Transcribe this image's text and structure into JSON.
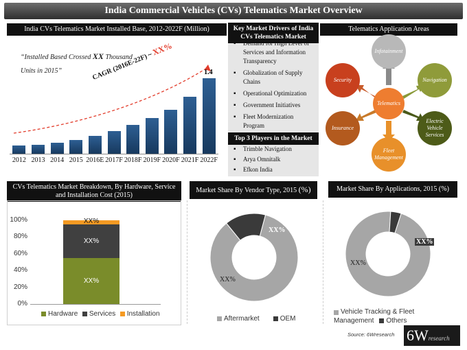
{
  "title": "India Commercial Vehicles (CVs) Telematics Market Overview",
  "installed_base": {
    "header": "India CVs Telematics Market Installed Base, 2012-2022F (Million)",
    "note_line1": "“Installed Based Crossed ",
    "note_bold": "XX",
    "note_line1_end": " Thousand",
    "note_line2": "Units in 2015”",
    "cagr_label": "CAGR (2016E-22F) ~ ",
    "cagr_value": "XX%",
    "last_value_label": "1.4"
  },
  "drivers": {
    "header": "Key Market Drivers of India CVs Telematics Market",
    "items": [
      "Demand for High Level of Services and Information Transparency",
      "Globalization of Supply Chains",
      "Operational Optimization",
      "Government Initiatives",
      "Fleet Modernization Program"
    ]
  },
  "players": {
    "header": "Top 3 Players in the Market",
    "items": [
      "Trimble Navigation",
      "Arya Omnitalk",
      "Efkon India"
    ]
  },
  "applications": {
    "header": "Telematics Application Areas",
    "center": "Telematics",
    "nodes": {
      "infotainment": "Infotainment",
      "navigation": "Navigation",
      "electric": "Electric Vehicle Services",
      "fleet": "Fleet Management",
      "insurance": "Insurance",
      "security": "Security"
    }
  },
  "breakdown": {
    "header": "CVs Telematics Market Breakdown, By Hardware, Service and Installation Cost (2015)",
    "legend": [
      "Hardware",
      "Services",
      "Installation"
    ],
    "segment_labels": [
      "XX%",
      "XX%",
      "XX%"
    ]
  },
  "vendor": {
    "header_main": "Market Share By Vendor Type, 2015 ",
    "header_unit": "(%)",
    "legend": [
      "Aftermarket",
      "OEM"
    ],
    "labels": [
      "XX%",
      "XX%"
    ]
  },
  "apps_share": {
    "header": "Market Share By Applications, 2015 (%)",
    "legend": [
      "Vehicle Tracking & Fleet Management",
      "Others"
    ],
    "labels": [
      "XX%",
      "XX%"
    ]
  },
  "source": "Source: 6Wresearch",
  "logo": {
    "big": "6W",
    "small": "research"
  },
  "colors": {
    "bar": "#1f4a7a",
    "hardware": "#7a8c2a",
    "services": "#404040",
    "installation": "#f59a23",
    "donut_gray": "#a6a6a6",
    "donut_dark": "#3a3a3a"
  },
  "chart_data": [
    {
      "type": "bar",
      "title": "India CVs Telematics Market Installed Base, 2012-2022F (Million)",
      "categories": [
        "2012",
        "2013",
        "2014",
        "2015",
        "2016E",
        "2017F",
        "2018F",
        "2019F",
        "2020F",
        "2021F",
        "2022F"
      ],
      "values": [
        0.15,
        0.17,
        0.21,
        0.26,
        0.33,
        0.42,
        0.53,
        0.66,
        0.81,
        1.06,
        1.4
      ]
    },
    {
      "type": "bar",
      "title": "CVs Telematics Market Breakdown, By Hardware, Service and Installation Cost (2015)",
      "categories": [
        "2015"
      ],
      "series": [
        {
          "name": "Hardware",
          "values": [
            55
          ]
        },
        {
          "name": "Services",
          "values": [
            40
          ]
        },
        {
          "name": "Installation",
          "values": [
            5
          ]
        }
      ],
      "ylim": [
        0,
        100
      ],
      "yticks": [
        "0%",
        "20%",
        "40%",
        "60%",
        "80%",
        "100%"
      ]
    },
    {
      "type": "pie",
      "title": "Market Share By Vendor Type, 2015 (%)",
      "categories": [
        "Aftermarket",
        "OEM"
      ],
      "values": [
        85,
        15
      ]
    },
    {
      "type": "pie",
      "title": "Market Share By Applications, 2015 (%)",
      "categories": [
        "Vehicle Tracking & Fleet Management",
        "Others"
      ],
      "values": [
        96,
        4
      ]
    }
  ]
}
